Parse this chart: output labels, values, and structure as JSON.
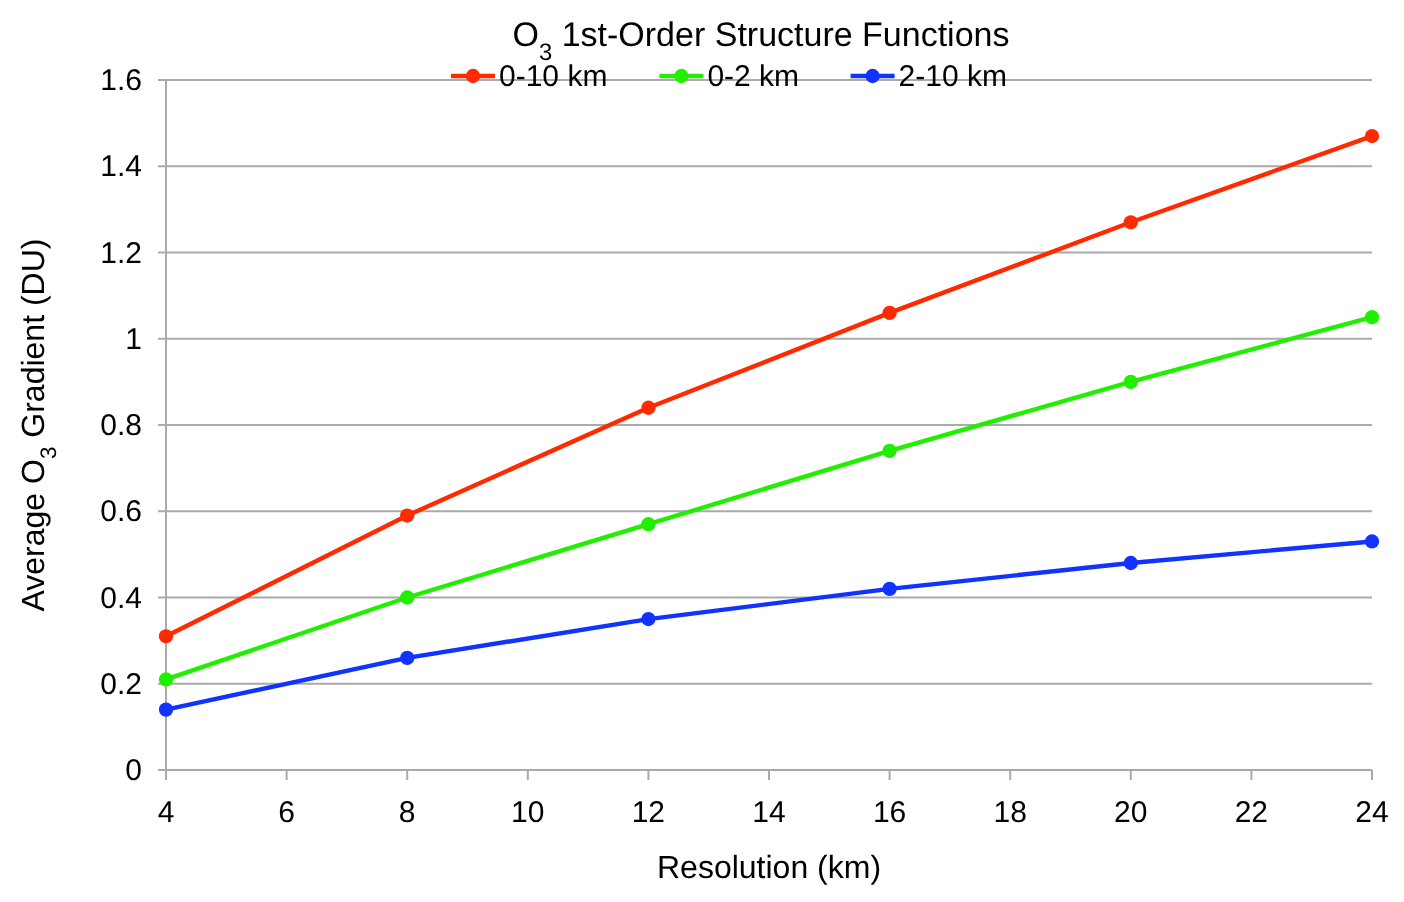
{
  "chart_data": {
    "type": "line",
    "title": "O$_{3}$ 1st-Order Structure Functions",
    "xlabel": "Resolution (km)",
    "ylabel": "Average O$_{3}$ Gradient (DU)",
    "x": [
      4,
      8,
      12,
      16,
      20,
      24
    ],
    "series": [
      {
        "name": "0-10 km",
        "color": "#ff2a00",
        "values": [
          0.31,
          0.59,
          0.84,
          1.06,
          1.27,
          1.47
        ]
      },
      {
        "name": "0-2 km",
        "color": "#22ee00",
        "values": [
          0.21,
          0.4,
          0.57,
          0.74,
          0.9,
          1.05
        ]
      },
      {
        "name": "2-10 km",
        "color": "#1133ff",
        "values": [
          0.14,
          0.26,
          0.35,
          0.42,
          0.48,
          0.53
        ]
      }
    ],
    "xlim": [
      4,
      24
    ],
    "xticks": [
      4,
      6,
      8,
      10,
      12,
      14,
      16,
      18,
      20,
      22,
      24
    ],
    "ylim": [
      0,
      1.6
    ],
    "yticks": [
      0,
      0.2,
      0.4,
      0.6,
      0.8,
      1,
      1.2,
      1.4,
      1.6
    ],
    "grid": "y",
    "legend": "top",
    "marker": "circle",
    "line_style": "solid"
  }
}
